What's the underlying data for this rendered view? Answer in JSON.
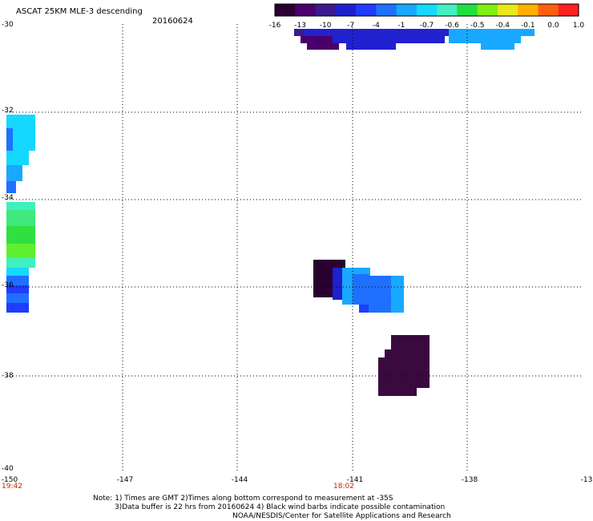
{
  "header": {
    "title": "ASCAT 25KM MLE-3 descending",
    "date": "20160624"
  },
  "colorbar": {
    "tick_labels": [
      "-16",
      "-13",
      "-10",
      "-7",
      "-4",
      "-1",
      "-0.7",
      "-0.6",
      "-0.5",
      "-0.4",
      "-0.1",
      "0.0",
      "1.0"
    ],
    "colors": [
      "#2a0030",
      "#4a006a",
      "#3a1a8e",
      "#2020d0",
      "#1f3cff",
      "#1f70ff",
      "#19a8ff",
      "#15d8ff",
      "#40f0c0",
      "#20e040",
      "#80ee10",
      "#e8e81a",
      "#ffb000",
      "#ff6010",
      "#ff2020"
    ]
  },
  "map": {
    "lat_labels": [
      "-30",
      "-32",
      "-34",
      "-36",
      "-38",
      "-40"
    ],
    "lon_labels": [
      "-150",
      "-147",
      "-144",
      "-141",
      "-138",
      "-13"
    ],
    "time_labels": [
      "19:42",
      "18:02"
    ],
    "lat_range": [
      -40,
      -30
    ],
    "lon_range": [
      -150,
      -135
    ],
    "grid": "dotted"
  },
  "footer": {
    "note_line1": "Note: 1) Times are GMT 2)Times along bottom correspond to measurement at -35S",
    "note_line2": "3)Data buffer is 22 hrs from 20160624 4) Black wind barbs indicate possible contamination",
    "credit": "NOAA/NESDIS/Center for Satellite Applications and Research"
  }
}
